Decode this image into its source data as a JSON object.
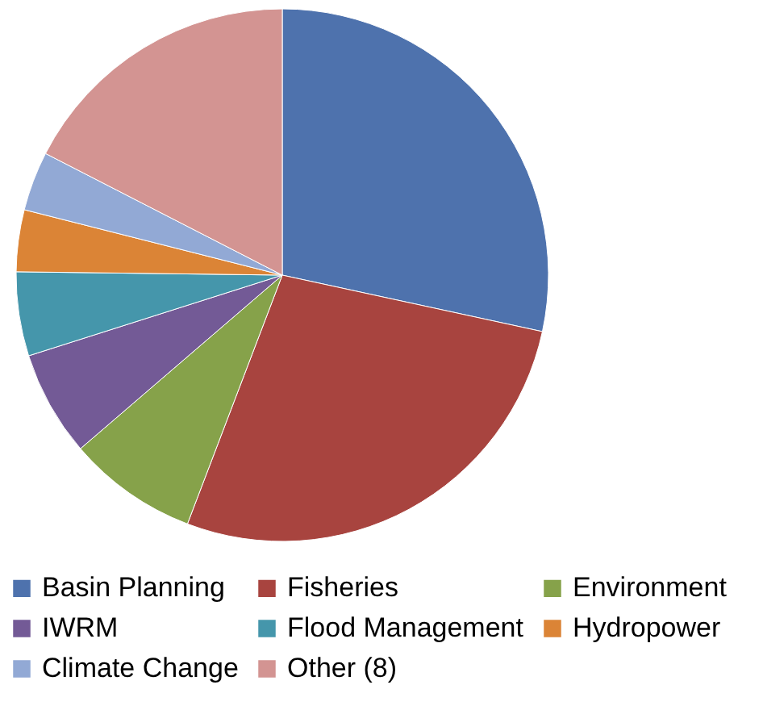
{
  "chart_data": {
    "type": "pie",
    "categories": [
      "Basin Planning",
      "Fisheries",
      "Environment",
      "IWRM",
      "Flood Management",
      "Hydropower",
      "Climate Change",
      "Other (8)"
    ],
    "values": [
      28.4,
      27.4,
      7.9,
      6.4,
      5.1,
      3.75,
      3.6,
      17.45
    ],
    "colors": [
      "#4e72ad",
      "#a8443f",
      "#86a24a",
      "#735a96",
      "#4596ab",
      "#db8436",
      "#92a9d5",
      "#d39492"
    ],
    "legend": "bottom"
  }
}
